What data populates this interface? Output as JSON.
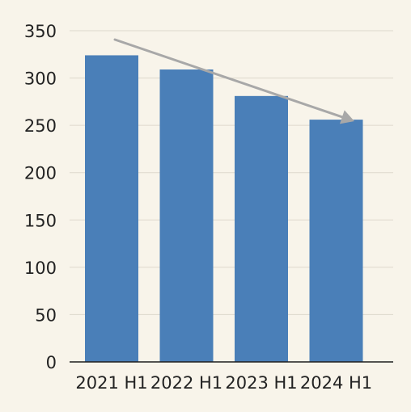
{
  "chart_data": {
    "type": "bar",
    "title": "",
    "xlabel": "",
    "ylabel": "",
    "categories": [
      "2021 H1",
      "2022 H1",
      "2023 H1",
      "2024 H1"
    ],
    "values": [
      324,
      309,
      281,
      256
    ],
    "ylim": [
      0,
      350
    ],
    "yticks": [
      0,
      50,
      100,
      150,
      200,
      250,
      300,
      350
    ],
    "grid": true,
    "legend": "none",
    "annotations": [
      {
        "type": "trend-arrow",
        "direction": "down",
        "from_category": "2021 H1",
        "to_category": "2024 H1"
      }
    ]
  },
  "colors": {
    "background": "#f8f4ea",
    "bar": "#4a7fb8",
    "grid": "#ddd8cc",
    "axis": "#1e1e1e",
    "arrow": "#a8a8a8",
    "text": "#222222"
  }
}
